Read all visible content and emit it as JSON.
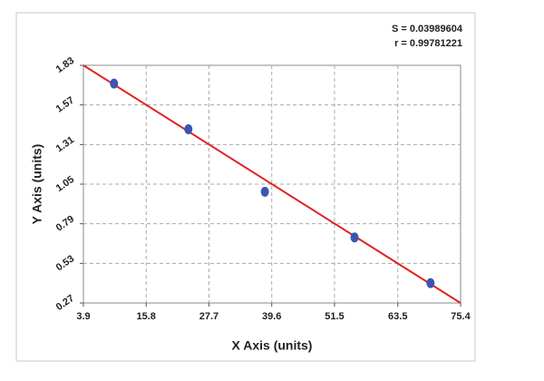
{
  "chart_data": {
    "type": "scatter",
    "annotations": [
      "S = 0.03989604",
      "r = 0.99781221"
    ],
    "xlabel": "X Axis (units)",
    "ylabel": "Y Axis (units)",
    "x": [
      9.7,
      23.8,
      38.3,
      55.3,
      69.7
    ],
    "values": [
      1.71,
      1.41,
      1.0,
      0.7,
      0.4
    ],
    "color": "#3a55b4",
    "fit": {
      "x": [
        3.9,
        75.4
      ],
      "values": [
        1.83,
        0.27
      ],
      "color": "#e02424"
    },
    "xlim": [
      3.9,
      75.4
    ],
    "xticks": [
      3.9,
      15.8,
      27.7,
      39.6,
      51.5,
      63.5,
      75.4
    ],
    "ylim": [
      0.27,
      1.83
    ],
    "yticks": [
      0.27,
      0.53,
      0.79,
      1.05,
      1.31,
      1.57,
      1.83
    ],
    "grid": true
  }
}
